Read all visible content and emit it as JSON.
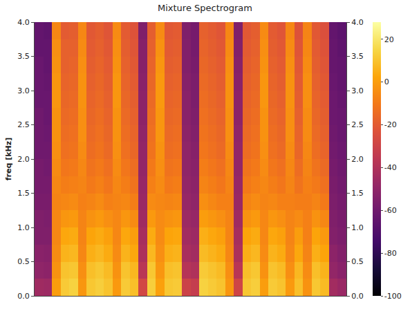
{
  "chart_data": {
    "type": "heatmap",
    "title": "Mixture Spectrogram",
    "y_label": "freq [kHz]",
    "tick_labels": "y",
    "color": "inferno",
    "y": [
      0.125,
      0.375,
      0.625,
      0.875,
      1.125,
      1.375,
      1.625,
      1.875,
      2.125,
      2.375,
      2.625,
      2.875,
      3.125,
      3.375,
      3.625,
      3.875
    ],
    "ylim": [
      0,
      4
    ],
    "yticks": [
      {
        "value": 0,
        "label": "0.0"
      },
      {
        "value": 0.5,
        "label": "0.5"
      },
      {
        "value": 1,
        "label": "1.0"
      },
      {
        "value": 1.5,
        "label": "1.5"
      },
      {
        "value": 2,
        "label": "2.0"
      },
      {
        "value": 2.5,
        "label": "2.5"
      },
      {
        "value": 3,
        "label": "3.0"
      },
      {
        "value": 3.5,
        "label": "3.5"
      },
      {
        "value": 4,
        "label": "4.0"
      }
    ],
    "y2lim": [
      0,
      4
    ],
    "y2ticks": [
      {
        "value": 0,
        "label": "0.0"
      },
      {
        "value": 0.5,
        "label": "0.5"
      },
      {
        "value": 1,
        "label": "1.0"
      },
      {
        "value": 1.5,
        "label": "1.5"
      },
      {
        "value": 2,
        "label": "2.0"
      },
      {
        "value": 2.5,
        "label": "2.5"
      },
      {
        "value": 3,
        "label": "3.0"
      },
      {
        "value": 3.5,
        "label": "3.5"
      },
      {
        "value": 4,
        "label": "4.0"
      }
    ],
    "colorbar_range": [
      -100,
      28
    ],
    "colorbar_ticks": [
      -100,
      -80,
      -60,
      -40,
      -20,
      0,
      20
    ],
    "cells": [
      [
        -45,
        -46,
        0,
        12,
        14,
        -2,
        11,
        13,
        10,
        -1,
        12,
        9,
        -28,
        13,
        1,
        11,
        12,
        -30,
        -33,
        14,
        12,
        10,
        -2,
        -29,
        11,
        13,
        0,
        12,
        10,
        -1,
        9,
        -3,
        11,
        8,
        -44,
        -47
      ],
      [
        -50,
        -51,
        -3,
        10,
        11,
        -4,
        9,
        11,
        8,
        -3,
        10,
        7,
        -37,
        11,
        -2,
        9,
        10,
        -38,
        -40,
        12,
        10,
        8,
        -4,
        -37,
        9,
        11,
        -3,
        10,
        8,
        -4,
        7,
        -5,
        9,
        6,
        -49,
        -52
      ],
      [
        -52,
        -53,
        -5,
        6,
        7,
        -6,
        5,
        7,
        4,
        -5,
        6,
        3,
        -41,
        7,
        -4,
        5,
        6,
        -42,
        -44,
        8,
        6,
        4,
        -6,
        -41,
        5,
        7,
        -5,
        6,
        4,
        -6,
        3,
        -7,
        5,
        2,
        -51,
        -54
      ],
      [
        -55,
        -55,
        -6,
        3,
        4,
        -7,
        2,
        4,
        1,
        -6,
        3,
        0,
        -43,
        4,
        -5,
        2,
        3,
        -44,
        -46,
        5,
        3,
        1,
        -7,
        -43,
        2,
        4,
        -6,
        3,
        1,
        -7,
        0,
        -8,
        2,
        -1,
        -54,
        -56
      ],
      [
        -55,
        -56,
        -6,
        -2,
        -1,
        -7,
        -3,
        -1,
        -4,
        -6,
        -2,
        -5,
        -45,
        -1,
        -5,
        -3,
        -2,
        -46,
        -48,
        0,
        -2,
        -4,
        -7,
        -45,
        -3,
        -1,
        -6,
        -2,
        -4,
        -7,
        -5,
        -8,
        -3,
        -6,
        -55,
        -57
      ],
      [
        -57,
        -57,
        -7,
        -6,
        -5,
        -8,
        -7,
        -5,
        -8,
        -7,
        -6,
        -9,
        -47,
        -5,
        -6,
        -7,
        -6,
        -48,
        -50,
        -4,
        -6,
        -8,
        -8,
        -47,
        -7,
        -5,
        -7,
        -6,
        -8,
        -8,
        -9,
        -9,
        -7,
        -10,
        -56,
        -58
      ],
      [
        -58,
        -58,
        -6,
        -9,
        -8,
        -7,
        -10,
        -8,
        -11,
        -6,
        -9,
        -12,
        -48,
        -8,
        -5,
        -10,
        -9,
        -49,
        -51,
        -7,
        -9,
        -11,
        -7,
        -48,
        -10,
        -8,
        -6,
        -9,
        -11,
        -7,
        -12,
        -8,
        -10,
        -13,
        -57,
        -59
      ],
      [
        -58,
        -59,
        -5,
        -11,
        -10,
        -6,
        -12,
        -10,
        -13,
        -5,
        -11,
        -14,
        -49,
        -10,
        -4,
        -12,
        -11,
        -50,
        -52,
        -9,
        -11,
        -13,
        -6,
        -49,
        -12,
        -10,
        -5,
        -11,
        -13,
        -6,
        -14,
        -7,
        -12,
        -15,
        -58,
        -60
      ],
      [
        -60,
        -60,
        -4,
        -13,
        -12,
        -5,
        -14,
        -12,
        -15,
        -4,
        -13,
        -16,
        -49,
        -12,
        -3,
        -14,
        -13,
        -50,
        -53,
        -11,
        -13,
        -15,
        -5,
        -49,
        -14,
        -12,
        -4,
        -13,
        -15,
        -5,
        -16,
        -6,
        -14,
        -17,
        -59,
        -61
      ],
      [
        -60,
        -61,
        -3,
        -14,
        -13,
        -4,
        -15,
        -13,
        -16,
        -3,
        -14,
        -17,
        -50,
        -13,
        -2,
        -15,
        -14,
        -51,
        -54,
        -12,
        -14,
        -16,
        -4,
        -50,
        -15,
        -13,
        -3,
        -14,
        -16,
        -4,
        -17,
        -5,
        -15,
        -18,
        -60,
        -62
      ],
      [
        -60,
        -62,
        -3,
        -15,
        -14,
        -4,
        -16,
        -14,
        -17,
        -3,
        -15,
        -18,
        -51,
        -14,
        -2,
        -16,
        -15,
        -52,
        -55,
        -13,
        -15,
        -17,
        -4,
        -51,
        -16,
        -14,
        -3,
        -15,
        -17,
        -4,
        -18,
        -5,
        -16,
        -19,
        -61,
        -62
      ],
      [
        -62,
        -62,
        -2,
        -16,
        -15,
        -3,
        -17,
        -15,
        -18,
        -2,
        -16,
        -19,
        -51,
        -15,
        -1,
        -17,
        -16,
        -52,
        -56,
        -14,
        -16,
        -18,
        -3,
        -51,
        -17,
        -15,
        -2,
        -16,
        -18,
        -3,
        -19,
        -4,
        -17,
        -20,
        -61,
        -63
      ],
      [
        -62,
        -63,
        -2,
        -17,
        -16,
        -3,
        -18,
        -16,
        -19,
        -2,
        -17,
        -20,
        -52,
        -16,
        -1,
        -18,
        -17,
        -53,
        -56,
        -15,
        -17,
        -19,
        -3,
        -52,
        -18,
        -16,
        -2,
        -17,
        -19,
        -3,
        -20,
        -4,
        -18,
        -21,
        -62,
        -64
      ],
      [
        -62,
        -64,
        -3,
        -18,
        -17,
        -4,
        -19,
        -17,
        -20,
        -3,
        -18,
        -21,
        -53,
        -17,
        -2,
        -19,
        -18,
        -54,
        -57,
        -16,
        -18,
        -20,
        -4,
        -53,
        -19,
        -17,
        -3,
        -18,
        -20,
        -4,
        -21,
        -5,
        -19,
        -22,
        -63,
        -64
      ],
      [
        -64,
        -64,
        -4,
        -18,
        -18,
        -5,
        -20,
        -18,
        -21,
        -4,
        -19,
        -22,
        -53,
        -18,
        -3,
        -20,
        -19,
        -54,
        -58,
        -17,
        -19,
        -21,
        -5,
        -54,
        -20,
        -18,
        -4,
        -19,
        -21,
        -5,
        -22,
        -6,
        -20,
        -23,
        -63,
        -65
      ],
      [
        -64,
        -65,
        -6,
        -20,
        -19,
        -6,
        -21,
        -19,
        -22,
        -5,
        -20,
        -23,
        -55,
        -19,
        -5,
        -21,
        -20,
        -55,
        -58,
        -18,
        -20,
        -22,
        -6,
        -55,
        -21,
        -19,
        -5,
        -20,
        -22,
        -6,
        -23,
        -7,
        -21,
        -24,
        -64,
        -66
      ]
    ]
  }
}
